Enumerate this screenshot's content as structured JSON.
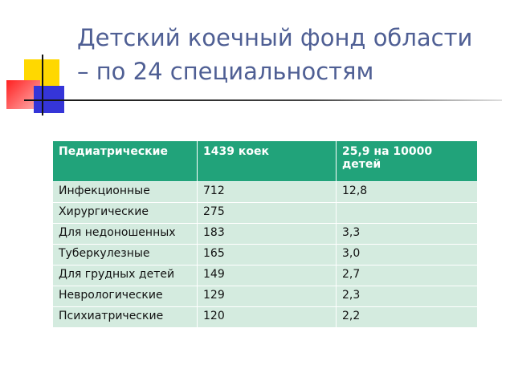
{
  "title": [
    "Детский коечный фонд области",
    "– по 24 специальностям"
  ],
  "table": {
    "header": [
      "Педиатрические",
      "1439 коек",
      "25,9 на 10000 детей"
    ],
    "rows": [
      [
        "Инфекционные",
        "712",
        "12,8"
      ],
      [
        "Хирургические",
        "275",
        null
      ],
      [
        "Для недоношенных",
        "183",
        "3,3"
      ],
      [
        "Туберкулезные",
        "165",
        "3,0"
      ],
      [
        "Для грудных детей",
        "149",
        "2,7"
      ],
      [
        "Неврологические",
        "129",
        "2,3"
      ],
      [
        "Психиатрические",
        "120",
        "2,2"
      ]
    ]
  }
}
